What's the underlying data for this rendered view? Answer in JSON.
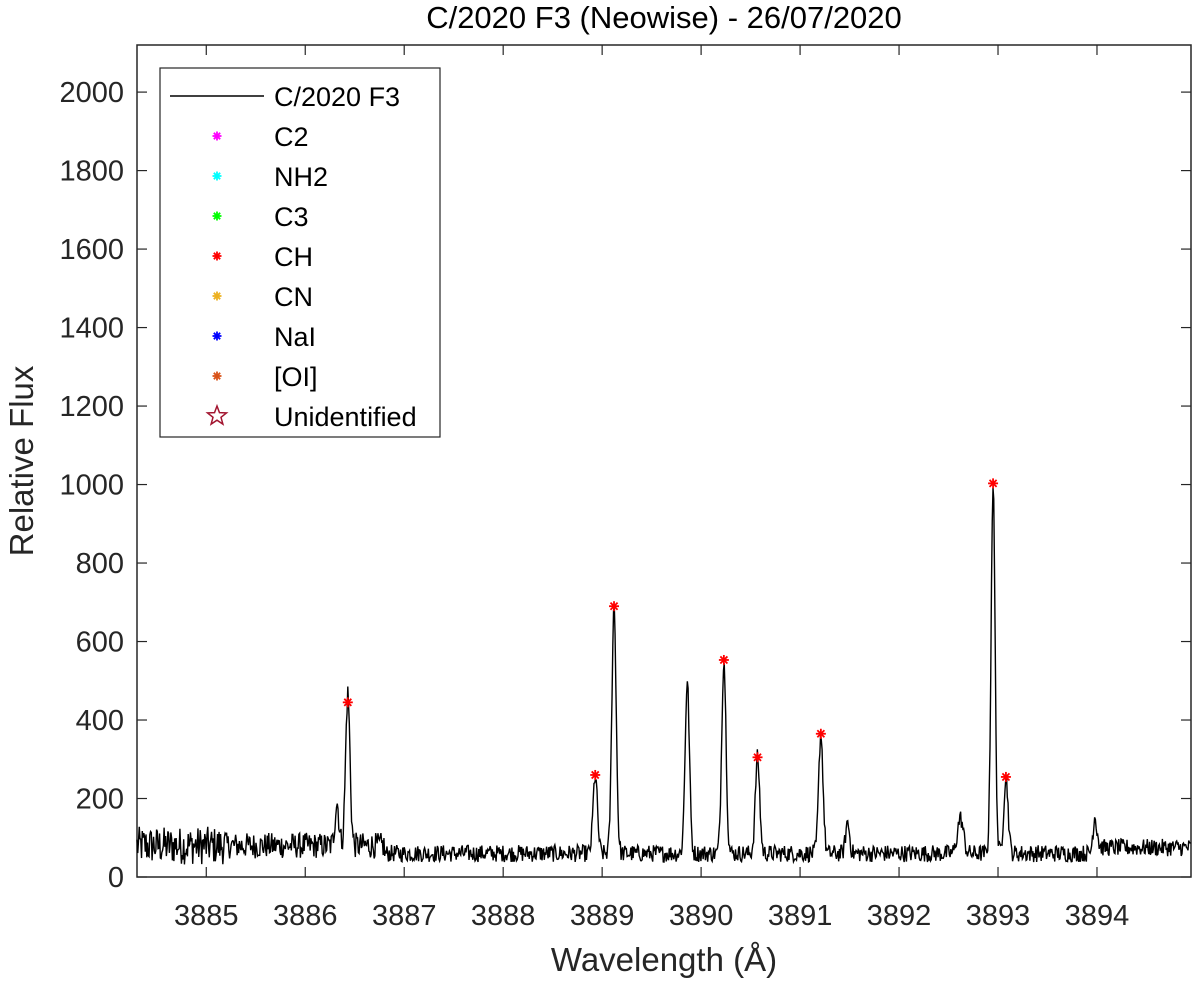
{
  "chart_data": {
    "type": "line",
    "title": "C/2020 F3 (Neowise) - 26/07/2020",
    "xlabel": "Wavelength (Å)",
    "ylabel": "Relative Flux",
    "xlim": [
      3884.3,
      3894.95
    ],
    "ylim": [
      0,
      2120
    ],
    "xticks": [
      3885,
      3886,
      3887,
      3888,
      3889,
      3890,
      3891,
      3892,
      3893,
      3894
    ],
    "yticks": [
      0,
      200,
      400,
      600,
      800,
      1000,
      1200,
      1400,
      1600,
      1800,
      2000
    ],
    "grid": false,
    "legend_position": "top-left",
    "legend": [
      {
        "label": "C/2020 F3",
        "marker": "line",
        "color": "#000000"
      },
      {
        "label": "C2",
        "marker": "asterisk",
        "color": "#ff00ff"
      },
      {
        "label": "NH2",
        "marker": "asterisk",
        "color": "#00ffff"
      },
      {
        "label": "C3",
        "marker": "asterisk",
        "color": "#00ff00"
      },
      {
        "label": "CH",
        "marker": "asterisk",
        "color": "#ff0000"
      },
      {
        "label": "CN",
        "marker": "asterisk",
        "color": "#edb120"
      },
      {
        "label": "NaI",
        "marker": "asterisk",
        "color": "#0000ff"
      },
      {
        "label": "[OI]",
        "marker": "asterisk",
        "color": "#d95319"
      },
      {
        "label": "Unidentified",
        "marker": "star",
        "color": "#a2142f"
      }
    ],
    "spectrum": {
      "name": "C/2020 F3",
      "color": "#000000",
      "baseline": 60,
      "noise": 22,
      "lines": [
        {
          "x": 3886.32,
          "peak": 170,
          "width": 0.02
        },
        {
          "x": 3886.43,
          "peak": 445,
          "width": 0.022
        },
        {
          "x": 3888.93,
          "peak": 258,
          "width": 0.022
        },
        {
          "x": 3889.12,
          "peak": 690,
          "width": 0.022
        },
        {
          "x": 3889.86,
          "peak": 495,
          "width": 0.022
        },
        {
          "x": 3890.23,
          "peak": 552,
          "width": 0.022
        },
        {
          "x": 3890.57,
          "peak": 305,
          "width": 0.022
        },
        {
          "x": 3891.21,
          "peak": 365,
          "width": 0.022
        },
        {
          "x": 3891.48,
          "peak": 140,
          "width": 0.02
        },
        {
          "x": 3892.62,
          "peak": 150,
          "width": 0.03
        },
        {
          "x": 3892.95,
          "peak": 1000,
          "width": 0.02
        },
        {
          "x": 3893.08,
          "peak": 255,
          "width": 0.022
        },
        {
          "x": 3893.98,
          "peak": 155,
          "width": 0.02
        }
      ]
    },
    "markers": [
      {
        "species": "CH",
        "x": 3886.43,
        "y": 445
      },
      {
        "species": "CH",
        "x": 3888.93,
        "y": 260
      },
      {
        "species": "CH",
        "x": 3889.12,
        "y": 690
      },
      {
        "species": "CH",
        "x": 3890.23,
        "y": 553
      },
      {
        "species": "CH",
        "x": 3890.57,
        "y": 305
      },
      {
        "species": "CH",
        "x": 3891.21,
        "y": 365
      },
      {
        "species": "CH",
        "x": 3892.95,
        "y": 1003
      },
      {
        "species": "CH",
        "x": 3893.08,
        "y": 255
      }
    ]
  }
}
